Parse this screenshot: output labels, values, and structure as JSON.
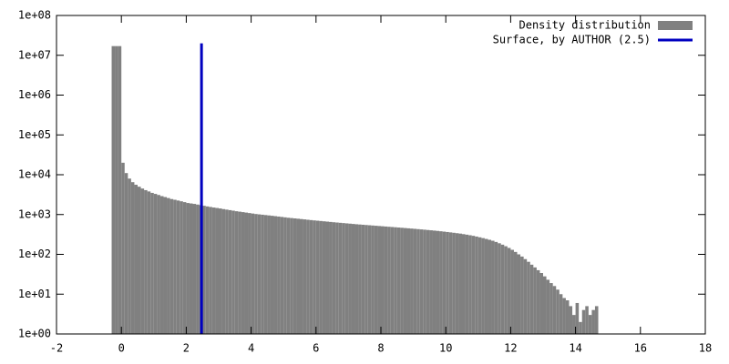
{
  "chart_data": {
    "type": "histogram",
    "log_y": true,
    "legend": "top-right",
    "xlim": [
      -2,
      18
    ],
    "xticks": [
      -2,
      0,
      2,
      4,
      6,
      8,
      10,
      12,
      14,
      16,
      18
    ],
    "ylim": [
      1,
      100000000
    ],
    "yticks": [
      {
        "value": 1,
        "label": "1e+00"
      },
      {
        "value": 10,
        "label": "1e+01"
      },
      {
        "value": 100,
        "label": "1e+02"
      },
      {
        "value": 1000,
        "label": "1e+03"
      },
      {
        "value": 10000,
        "label": "1e+04"
      },
      {
        "value": 100000,
        "label": "1e+05"
      },
      {
        "value": 1000000,
        "label": "1e+06"
      },
      {
        "value": 10000000,
        "label": "1e+07"
      },
      {
        "value": 100000000,
        "label": "1e+08"
      }
    ],
    "series": [
      {
        "name": "Density distribution",
        "color": "#808080",
        "bins": [
          -0.3,
          -0.2,
          -0.1,
          0.0,
          0.1,
          0.2,
          0.3,
          0.4,
          0.5,
          0.6,
          0.7,
          0.8,
          0.9,
          1.0,
          1.1,
          1.2,
          1.3,
          1.4,
          1.5,
          1.6,
          1.7,
          1.8,
          1.9,
          2.0,
          2.1,
          2.2,
          2.3,
          2.4,
          2.5,
          2.6,
          2.7,
          2.8,
          2.9,
          3.0,
          3.1,
          3.2,
          3.3,
          3.4,
          3.5,
          3.6,
          3.7,
          3.8,
          3.9,
          4.0,
          4.1,
          4.2,
          4.3,
          4.4,
          4.5,
          4.6,
          4.7,
          4.8,
          4.9,
          5.0,
          5.1,
          5.2,
          5.3,
          5.4,
          5.5,
          5.6,
          5.7,
          5.8,
          5.9,
          6.0,
          6.1,
          6.2,
          6.3,
          6.4,
          6.5,
          6.6,
          6.7,
          6.8,
          6.9,
          7.0,
          7.1,
          7.2,
          7.3,
          7.4,
          7.5,
          7.6,
          7.7,
          7.8,
          7.9,
          8.0,
          8.1,
          8.2,
          8.3,
          8.4,
          8.5,
          8.6,
          8.7,
          8.8,
          8.9,
          9.0,
          9.1,
          9.2,
          9.3,
          9.4,
          9.5,
          9.6,
          9.7,
          9.8,
          9.9,
          10.0,
          10.1,
          10.2,
          10.3,
          10.4,
          10.5,
          10.6,
          10.7,
          10.8,
          10.9,
          11.0,
          11.1,
          11.2,
          11.3,
          11.4,
          11.5,
          11.6,
          11.7,
          11.8,
          11.9,
          12.0,
          12.1,
          12.2,
          12.3,
          12.4,
          12.5,
          12.6,
          12.7,
          12.8,
          12.9,
          13.0,
          13.1,
          13.2,
          13.3,
          13.4,
          13.5,
          13.6,
          13.7,
          13.8,
          13.9,
          14.0,
          14.1,
          14.2,
          14.3,
          14.4,
          14.5,
          14.6,
          14.7
        ],
        "values": [
          17000000,
          17000000,
          17000000,
          20000,
          11000,
          8000,
          6500,
          5600,
          5000,
          4500,
          4100,
          3800,
          3500,
          3300,
          3100,
          2900,
          2750,
          2600,
          2450,
          2350,
          2250,
          2150,
          2050,
          1950,
          1900,
          1850,
          1780,
          1720,
          1660,
          1600,
          1550,
          1500,
          1460,
          1420,
          1370,
          1330,
          1290,
          1250,
          1210,
          1180,
          1150,
          1120,
          1090,
          1060,
          1030,
          1010,
          990,
          970,
          950,
          930,
          910,
          890,
          870,
          850,
          830,
          815,
          800,
          785,
          770,
          755,
          740,
          725,
          712,
          700,
          688,
          676,
          664,
          652,
          640,
          630,
          620,
          610,
          600,
          590,
          580,
          570,
          562,
          554,
          546,
          538,
          530,
          522,
          515,
          508,
          500,
          493,
          486,
          479,
          472,
          465,
          458,
          451,
          444,
          437,
          430,
          423,
          416,
          409,
          402,
          395,
          388,
          380,
          372,
          364,
          356,
          348,
          340,
          332,
          322,
          312,
          302,
          292,
          280,
          268,
          256,
          244,
          232,
          220,
          205,
          190,
          175,
          160,
          145,
          130,
          115,
          100,
          88,
          76,
          65,
          55,
          47,
          40,
          34,
          28,
          23,
          19,
          16,
          13,
          10,
          8,
          7,
          5,
          3,
          6,
          2,
          4,
          5,
          3,
          4,
          5
        ]
      },
      {
        "name": "Surface, by AUTHOR (2.5)",
        "color": "#0000c0",
        "type": "vline",
        "x": [
          2.47,
          2.47
        ],
        "values": [
          1,
          20000000
        ]
      }
    ]
  }
}
